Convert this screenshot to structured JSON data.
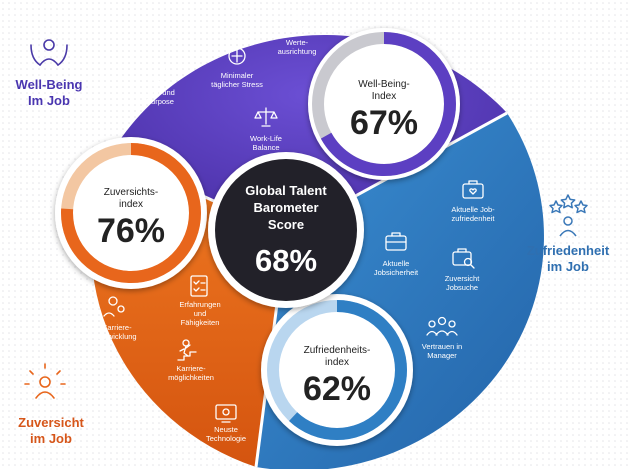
{
  "colors": {
    "purple": "#5c3fc2",
    "blue": "#2f7fc4",
    "orange": "#e8661c",
    "center": "#222129",
    "track_grey": "#c9c9cf"
  },
  "center": {
    "title_lines": [
      "Global Talent",
      "Barometer",
      "Score"
    ],
    "score": "68%"
  },
  "segments": {
    "well_being": {
      "side_label_lines": [
        "Well-Being",
        "Im Job"
      ],
      "side_icon": "person-raised-hands-icon",
      "index_title_lines": [
        "Well-Being-",
        "Index"
      ],
      "index_value": "67%",
      "index_fraction": 0.67,
      "items": [
        {
          "icon": "hands-heart-icon",
          "lines": [
            "Sinn und",
            "Purpose"
          ]
        },
        {
          "icon": "brain-icon",
          "lines": [
            "Minimaler",
            "täglicher Stress"
          ]
        },
        {
          "icon": "target-icon",
          "lines": [
            "Werte-",
            "ausrichtung"
          ]
        },
        {
          "icon": "balance-scale-icon",
          "lines": [
            "Work-Life",
            "Balance"
          ]
        }
      ]
    },
    "zufriedenheit": {
      "side_label_lines": [
        "Zufriedenheit",
        "im Job"
      ],
      "side_icon": "person-stars-icon",
      "index_title_lines": [
        "Zufriedenheits-",
        "index"
      ],
      "index_value": "62%",
      "index_fraction": 0.62,
      "items": [
        {
          "icon": "briefcase-heart-icon",
          "lines": [
            "Aktuelle Job-",
            "zufriedenheit"
          ]
        },
        {
          "icon": "briefcase-icon",
          "lines": [
            "Aktuelle",
            "Jobsicherheit"
          ]
        },
        {
          "icon": "briefcase-search-icon",
          "lines": [
            "Zuversicht",
            "Jobsuche"
          ]
        },
        {
          "icon": "team-icon",
          "lines": [
            "Vertrauen in",
            "Manager"
          ]
        }
      ]
    },
    "zuversicht": {
      "side_label_lines": [
        "Zuversicht",
        "im Job"
      ],
      "side_icon": "person-sun-icon",
      "index_title_lines": [
        "Zuversichts-",
        "index"
      ],
      "index_value": "76%",
      "index_fraction": 0.76,
      "items": [
        {
          "icon": "checklist-icon",
          "lines": [
            "Erfahrungen",
            "und",
            "Fähigkeiten"
          ]
        },
        {
          "icon": "gears-person-icon",
          "lines": [
            "Karriere-",
            "entwicklung"
          ]
        },
        {
          "icon": "person-climbing-stairs-icon",
          "lines": [
            "Karriere-",
            "möglichkeiten"
          ]
        },
        {
          "icon": "screen-gear-icon",
          "lines": [
            "Neuste",
            "Technologie"
          ]
        }
      ]
    }
  }
}
